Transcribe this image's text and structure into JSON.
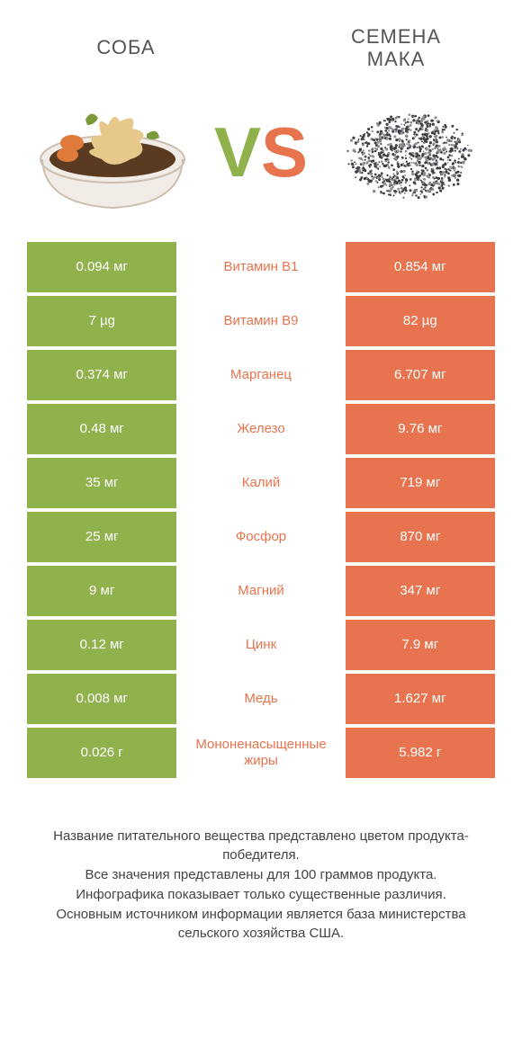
{
  "colors": {
    "left_bar": "#8fb24d",
    "right_bar": "#e8744f",
    "vs_v": "#8fb24d",
    "vs_s": "#e8744f",
    "mid_text": "#e8744f",
    "bowl_fill": "#f2ece6",
    "bowl_stroke": "#cdbfb0",
    "broth": "#5a3b22",
    "tempura": "#e6c98a",
    "carrot": "#e07a3a",
    "greens": "#7a9a3a",
    "poppy_dark": "#3e3e42",
    "poppy_light": "#8a8a92"
  },
  "header": {
    "left_title": "СОБА",
    "right_title_line1": "СЕМЕНА",
    "right_title_line2": "МАКА",
    "vs_v": "V",
    "vs_s": "S"
  },
  "rows": [
    {
      "left": "0.094 мг",
      "mid": "Витамин В1",
      "right": "0.854 мг"
    },
    {
      "left": "7 µg",
      "mid": "Витамин В9",
      "right": "82 µg"
    },
    {
      "left": "0.374 мг",
      "mid": "Марганец",
      "right": "6.707 мг"
    },
    {
      "left": "0.48 мг",
      "mid": "Железо",
      "right": "9.76 мг"
    },
    {
      "left": "35 мг",
      "mid": "Калий",
      "right": "719 мг"
    },
    {
      "left": "25 мг",
      "mid": "Фосфор",
      "right": "870 мг"
    },
    {
      "left": "9 мг",
      "mid": "Магний",
      "right": "347 мг"
    },
    {
      "left": "0.12 мг",
      "mid": "Цинк",
      "right": "7.9 мг"
    },
    {
      "left": "0.008 мг",
      "mid": "Медь",
      "right": "1.627 мг"
    },
    {
      "left": "0.026 г",
      "mid": "Мононенасыщенные жиры",
      "right": "5.982 г"
    }
  ],
  "footer": {
    "l1": "Название питательного вещества представлено цветом продукта-победителя.",
    "l2": "Все значения представлены для 100 граммов продукта.",
    "l3": "Инфографика показывает только существенные различия.",
    "l4": "Основным источником информации является база министерства сельского хозяйства США."
  }
}
